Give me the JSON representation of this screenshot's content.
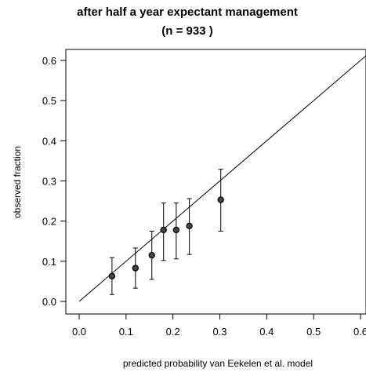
{
  "chart_data": {
    "type": "scatter",
    "title_line1": "after half a year expectant management",
    "title_line2": "(n = 933 )",
    "xlabel": "predicted probability van Eekelen et al. model",
    "ylabel": "observed fraction",
    "xlim": [
      0.0,
      0.62
    ],
    "ylim": [
      0.0,
      0.62
    ],
    "x_ticks": [
      0.0,
      0.1,
      0.2,
      0.3,
      0.4,
      0.5,
      0.6
    ],
    "x_tick_labels": [
      "0.0",
      "0.1",
      "0.2",
      "0.3",
      "0.4",
      "0.5",
      "0.6"
    ],
    "y_ticks": [
      0.0,
      0.1,
      0.2,
      0.3,
      0.4,
      0.5,
      0.6
    ],
    "y_tick_labels": [
      "0.0",
      "0.1",
      "0.2",
      "0.3",
      "0.4",
      "0.5",
      "0.6"
    ],
    "grid": false,
    "reference_line": {
      "x": [
        0.0,
        0.62
      ],
      "y": [
        0.0,
        0.62
      ]
    },
    "points": [
      {
        "x": 0.07,
        "y": 0.063,
        "lower": 0.017,
        "upper": 0.109
      },
      {
        "x": 0.12,
        "y": 0.083,
        "lower": 0.033,
        "upper": 0.133
      },
      {
        "x": 0.155,
        "y": 0.115,
        "lower": 0.055,
        "upper": 0.175
      },
      {
        "x": 0.18,
        "y": 0.178,
        "lower": 0.102,
        "upper": 0.245
      },
      {
        "x": 0.207,
        "y": 0.178,
        "lower": 0.106,
        "upper": 0.245
      },
      {
        "x": 0.235,
        "y": 0.188,
        "lower": 0.117,
        "upper": 0.256
      },
      {
        "x": 0.302,
        "y": 0.253,
        "lower": 0.175,
        "upper": 0.329
      }
    ]
  }
}
